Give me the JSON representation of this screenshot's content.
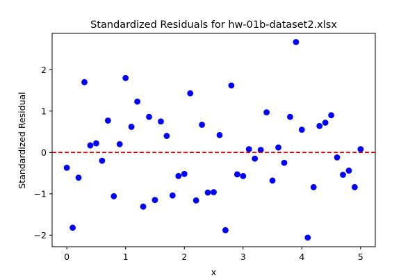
{
  "chart_data": {
    "type": "scatter",
    "title": "Standardized Residuals for hw-01b-dataset2.xlsx",
    "xlabel": "x",
    "ylabel": "Standardized Residual",
    "xlim": [
      -0.25,
      5.25
    ],
    "ylim": [
      -2.28,
      2.88
    ],
    "xticks": [
      0,
      1,
      2,
      3,
      4,
      5
    ],
    "yticks": [
      -2,
      -1,
      0,
      1,
      2
    ],
    "reference_line": {
      "y": 0,
      "style": "dashed",
      "color": "#e00000"
    },
    "marker_color": "#0000ff",
    "points": [
      {
        "x": 0.0,
        "y": -0.37
      },
      {
        "x": 0.1,
        "y": -1.82
      },
      {
        "x": 0.2,
        "y": -0.61
      },
      {
        "x": 0.3,
        "y": 1.7
      },
      {
        "x": 0.4,
        "y": 0.17
      },
      {
        "x": 0.5,
        "y": 0.22
      },
      {
        "x": 0.6,
        "y": -0.2
      },
      {
        "x": 0.7,
        "y": 0.77
      },
      {
        "x": 0.8,
        "y": -1.06
      },
      {
        "x": 0.9,
        "y": 0.2
      },
      {
        "x": 1.0,
        "y": 1.8
      },
      {
        "x": 1.1,
        "y": 0.62
      },
      {
        "x": 1.2,
        "y": 1.23
      },
      {
        "x": 1.3,
        "y": -1.31
      },
      {
        "x": 1.4,
        "y": 0.86
      },
      {
        "x": 1.5,
        "y": -1.15
      },
      {
        "x": 1.6,
        "y": 0.75
      },
      {
        "x": 1.7,
        "y": 0.4
      },
      {
        "x": 1.8,
        "y": -1.04
      },
      {
        "x": 1.9,
        "y": -0.57
      },
      {
        "x": 2.0,
        "y": -0.52
      },
      {
        "x": 2.1,
        "y": 1.43
      },
      {
        "x": 2.2,
        "y": -1.16
      },
      {
        "x": 2.3,
        "y": 0.67
      },
      {
        "x": 2.4,
        "y": -0.97
      },
      {
        "x": 2.5,
        "y": -0.96
      },
      {
        "x": 2.6,
        "y": 0.42
      },
      {
        "x": 2.7,
        "y": -1.88
      },
      {
        "x": 2.8,
        "y": 1.62
      },
      {
        "x": 2.9,
        "y": -0.53
      },
      {
        "x": 3.0,
        "y": -0.57
      },
      {
        "x": 3.1,
        "y": 0.08
      },
      {
        "x": 3.2,
        "y": -0.15
      },
      {
        "x": 3.3,
        "y": 0.06
      },
      {
        "x": 3.4,
        "y": 0.97
      },
      {
        "x": 3.5,
        "y": -0.68
      },
      {
        "x": 3.6,
        "y": 0.12
      },
      {
        "x": 3.7,
        "y": -0.25
      },
      {
        "x": 3.8,
        "y": 0.86
      },
      {
        "x": 3.9,
        "y": 2.67
      },
      {
        "x": 4.0,
        "y": 0.55
      },
      {
        "x": 4.1,
        "y": -2.06
      },
      {
        "x": 4.2,
        "y": -0.84
      },
      {
        "x": 4.3,
        "y": 0.64
      },
      {
        "x": 4.4,
        "y": 0.72
      },
      {
        "x": 4.5,
        "y": 0.9
      },
      {
        "x": 4.6,
        "y": -0.12
      },
      {
        "x": 4.7,
        "y": -0.54
      },
      {
        "x": 4.8,
        "y": -0.44
      },
      {
        "x": 4.9,
        "y": -0.84
      },
      {
        "x": 5.0,
        "y": 0.08
      }
    ]
  }
}
